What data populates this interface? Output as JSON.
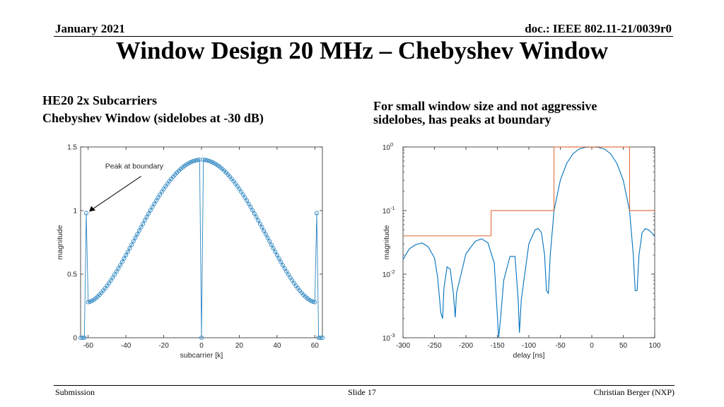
{
  "header": {
    "date": "January 2021",
    "doc": "doc.: IEEE 802.11-21/0039r0"
  },
  "title": "Window Design 20 MHz – Chebyshev Window",
  "left_text": {
    "line1": "HE20 2x Subcarriers",
    "line2": "Chebyshev Window (sidelobes at -30 dB)"
  },
  "right_text": {
    "line1": "For small window size and not aggressive",
    "line2": "sidelobes, has peaks at boundary"
  },
  "footer": {
    "left": "Submission",
    "center": "Slide 17",
    "right": "Christian Berger (NXP)"
  },
  "chart_data": [
    {
      "type": "scatter",
      "xlabel": "subcarrier [k]",
      "ylabel": "magnitude",
      "xlim": [
        -64,
        64
      ],
      "ylim": [
        0,
        1.5
      ],
      "xticks": [
        -60,
        -40,
        -20,
        0,
        20,
        40,
        60
      ],
      "yticks": [
        0,
        0.5,
        1,
        1.5
      ],
      "annotation": {
        "text": "Peak at boundary",
        "points_to": [
          -61,
          0.98
        ]
      },
      "color": "#2e86c1",
      "series": {
        "points": [
          [
            -64,
            0
          ],
          [
            -63,
            0
          ],
          [
            -62,
            0
          ],
          [
            -61,
            0.98
          ],
          [
            -1,
            1.4
          ],
          [
            0,
            0
          ],
          [
            1,
            1.4
          ],
          [
            61,
            0.98
          ],
          [
            62,
            0
          ],
          [
            63,
            0
          ],
          [
            64,
            0
          ]
        ],
        "envelope": {
          "k_start": 60,
          "edge_value": 0.28,
          "peak_value": 1.4
        }
      }
    },
    {
      "type": "line",
      "xlabel": "delay [ns]",
      "ylabel": "magnitude",
      "xlim": [
        -300,
        100
      ],
      "ylim": [
        0.001,
        1
      ],
      "yscale": "log",
      "xticks": [
        -300,
        -250,
        -200,
        -150,
        -100,
        -50,
        0,
        50,
        100
      ],
      "ytick_labels": [
        "10^-3",
        "10^-2",
        "10^-1",
        "10^0"
      ],
      "series": [
        {
          "color": "#0072bd",
          "points": [
            [
              -300,
              0.017
            ],
            [
              -290,
              0.025
            ],
            [
              -280,
              0.029
            ],
            [
              -270,
              0.031
            ],
            [
              -260,
              0.027
            ],
            [
              -250,
              0.018
            ],
            [
              -245,
              0.009
            ],
            [
              -240,
              0.0025
            ],
            [
              -237,
              0.002
            ],
            [
              -235,
              0.006
            ],
            [
              -230,
              0.013
            ],
            [
              -225,
              0.012
            ],
            [
              -220,
              0.005
            ],
            [
              -217,
              0.0021
            ],
            [
              -215,
              0.005
            ],
            [
              -200,
              0.021
            ],
            [
              -185,
              0.033
            ],
            [
              -175,
              0.036
            ],
            [
              -165,
              0.031
            ],
            [
              -155,
              0.015
            ],
            [
              -148,
              0.001
            ],
            [
              -145,
              0.002
            ],
            [
              -140,
              0.008
            ],
            [
              -130,
              0.019
            ],
            [
              -122,
              0.019
            ],
            [
              -117,
              0.004
            ],
            [
              -115,
              0.0012
            ],
            [
              -112,
              0.004
            ],
            [
              -100,
              0.03
            ],
            [
              -90,
              0.05
            ],
            [
              -85,
              0.052
            ],
            [
              -80,
              0.045
            ],
            [
              -75,
              0.02
            ],
            [
              -72,
              0.0055
            ],
            [
              -69,
              0.005
            ],
            [
              -66,
              0.02
            ],
            [
              -60,
              0.1
            ],
            [
              -50,
              0.3
            ],
            [
              -40,
              0.55
            ],
            [
              -30,
              0.78
            ],
            [
              -20,
              0.93
            ],
            [
              -10,
              0.99
            ],
            [
              0,
              1.0
            ],
            [
              10,
              0.99
            ],
            [
              20,
              0.93
            ],
            [
              30,
              0.78
            ],
            [
              40,
              0.55
            ],
            [
              50,
              0.3
            ],
            [
              60,
              0.1
            ],
            [
              66,
              0.02
            ],
            [
              69,
              0.0055
            ],
            [
              72,
              0.0055
            ],
            [
              75,
              0.02
            ],
            [
              80,
              0.045
            ],
            [
              85,
              0.052
            ],
            [
              90,
              0.05
            ],
            [
              95,
              0.045
            ],
            [
              100,
              0.04
            ]
          ]
        },
        {
          "color": "#d95319",
          "step": true,
          "points": [
            [
              -300,
              0.04
            ],
            [
              -160,
              0.04
            ],
            [
              -160,
              0.1
            ],
            [
              -60,
              0.1
            ],
            [
              -60,
              1.0
            ],
            [
              60,
              1.0
            ],
            [
              60,
              0.1
            ],
            [
              100,
              0.1
            ]
          ]
        }
      ]
    }
  ]
}
